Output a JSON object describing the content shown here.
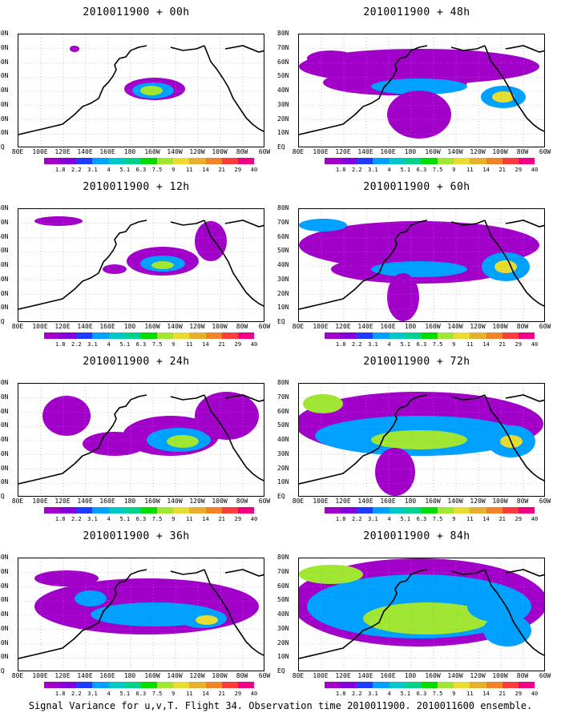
{
  "caption": "Signal Variance for u,v,T. Flight 34. Observation time 2010011900. 2010011600 ensemble.",
  "x_labels": [
    "80E",
    "100E",
    "120E",
    "140E",
    "160E",
    "180",
    "160W",
    "140W",
    "120W",
    "100W",
    "80W",
    "60W"
  ],
  "y_labels": [
    "80N",
    "70N",
    "60N",
    "50N",
    "40N",
    "30N",
    "20N",
    "10N",
    "EQ"
  ],
  "colorbar": {
    "labels": [
      "1.8",
      "2.2",
      "3.1",
      "4",
      "5.1",
      "6.3",
      "7.5",
      "9",
      "11",
      "14",
      "21",
      "29",
      "40"
    ],
    "colors": [
      "#a000c8",
      "#8200dc",
      "#1e3cff",
      "#00a0ff",
      "#00c8c8",
      "#00d28c",
      "#00dc00",
      "#a0e632",
      "#e6dc32",
      "#e6af2d",
      "#f08228",
      "#fa3c3c",
      "#f00082"
    ]
  },
  "panels": [
    {
      "title": "2010011900 + 00h"
    },
    {
      "title": "2010011900 + 48h"
    },
    {
      "title": "2010011900 + 12h"
    },
    {
      "title": "2010011900 + 60h"
    },
    {
      "title": "2010011900 + 24h"
    },
    {
      "title": "2010011900 + 72h"
    },
    {
      "title": "2010011900 + 36h"
    },
    {
      "title": "2010011900 + 84h"
    }
  ]
}
